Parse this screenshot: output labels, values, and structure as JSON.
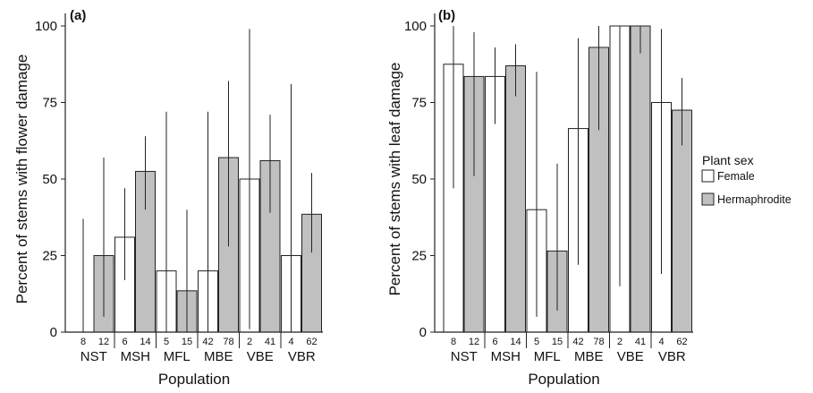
{
  "chart_data": [
    {
      "type": "bar",
      "panel_label": "(a)",
      "xlabel": "Population",
      "ylabel": "Percent of stems with flower damage",
      "ylim": [
        0,
        100
      ],
      "yticks": [
        "0",
        "25",
        "50",
        "75",
        "100"
      ],
      "categories": [
        "NST",
        "MSH",
        "MFL",
        "MBE",
        "VBE",
        "VBR"
      ],
      "series": [
        {
          "name": "Female",
          "values": [
            0,
            31,
            20,
            20,
            50,
            25
          ],
          "ci_low": [
            0,
            17,
            0,
            0,
            1,
            0
          ],
          "ci_high": [
            37,
            47,
            72,
            72,
            99,
            81
          ],
          "n": [
            "8",
            "6",
            "5",
            "42",
            "2",
            "4"
          ]
        },
        {
          "name": "Hermaphrodite",
          "values": [
            25,
            52.5,
            13.5,
            57,
            56,
            38.5
          ],
          "ci_low": [
            5,
            40,
            0,
            28,
            39,
            26
          ],
          "ci_high": [
            57,
            64,
            40,
            82,
            71,
            52
          ],
          "n": [
            "12",
            "14",
            "15",
            "78",
            "41",
            "62"
          ]
        }
      ]
    },
    {
      "type": "bar",
      "panel_label": "(b)",
      "xlabel": "Population",
      "ylabel": "Percent of stems with leaf damage",
      "ylim": [
        0,
        100
      ],
      "yticks": [
        "0",
        "25",
        "50",
        "75",
        "100"
      ],
      "categories": [
        "NST",
        "MSH",
        "MFL",
        "MBE",
        "VBE",
        "VBR"
      ],
      "series": [
        {
          "name": "Female",
          "values": [
            87.5,
            83.5,
            40,
            66.5,
            100,
            75
          ],
          "ci_low": [
            47,
            68,
            5,
            22,
            15,
            19
          ],
          "ci_high": [
            100,
            93,
            85,
            96,
            100,
            99
          ],
          "n": [
            "8",
            "6",
            "5",
            "42",
            "2",
            "4"
          ]
        },
        {
          "name": "Hermaphrodite",
          "values": [
            83.5,
            87,
            26.5,
            93,
            100,
            72.5
          ],
          "ci_low": [
            51,
            77,
            7,
            66,
            91,
            61
          ],
          "ci_high": [
            98,
            94,
            55,
            100,
            100,
            83
          ],
          "n": [
            "12",
            "14",
            "15",
            "78",
            "41",
            "62"
          ]
        }
      ]
    }
  ],
  "legend": {
    "title": "Plant sex",
    "items": [
      {
        "label": "Female",
        "fill": "#ffffff"
      },
      {
        "label": "Hermaphrodite",
        "fill": "#c0c0c0"
      }
    ]
  },
  "colors": {
    "female_fill": "#ffffff",
    "hermaphrodite_fill": "#c0c0c0",
    "stroke": "#222222"
  }
}
